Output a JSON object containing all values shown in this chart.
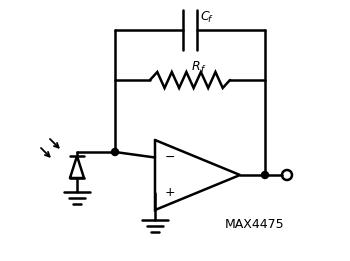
{
  "bg_color": "#ffffff",
  "line_color": "#000000",
  "line_width": 1.8,
  "label_Cf": "Cf",
  "label_Rf": "Rf",
  "label_chip": "MAX4475",
  "fig_width": 3.5,
  "fig_height": 2.61,
  "dpi": 100
}
